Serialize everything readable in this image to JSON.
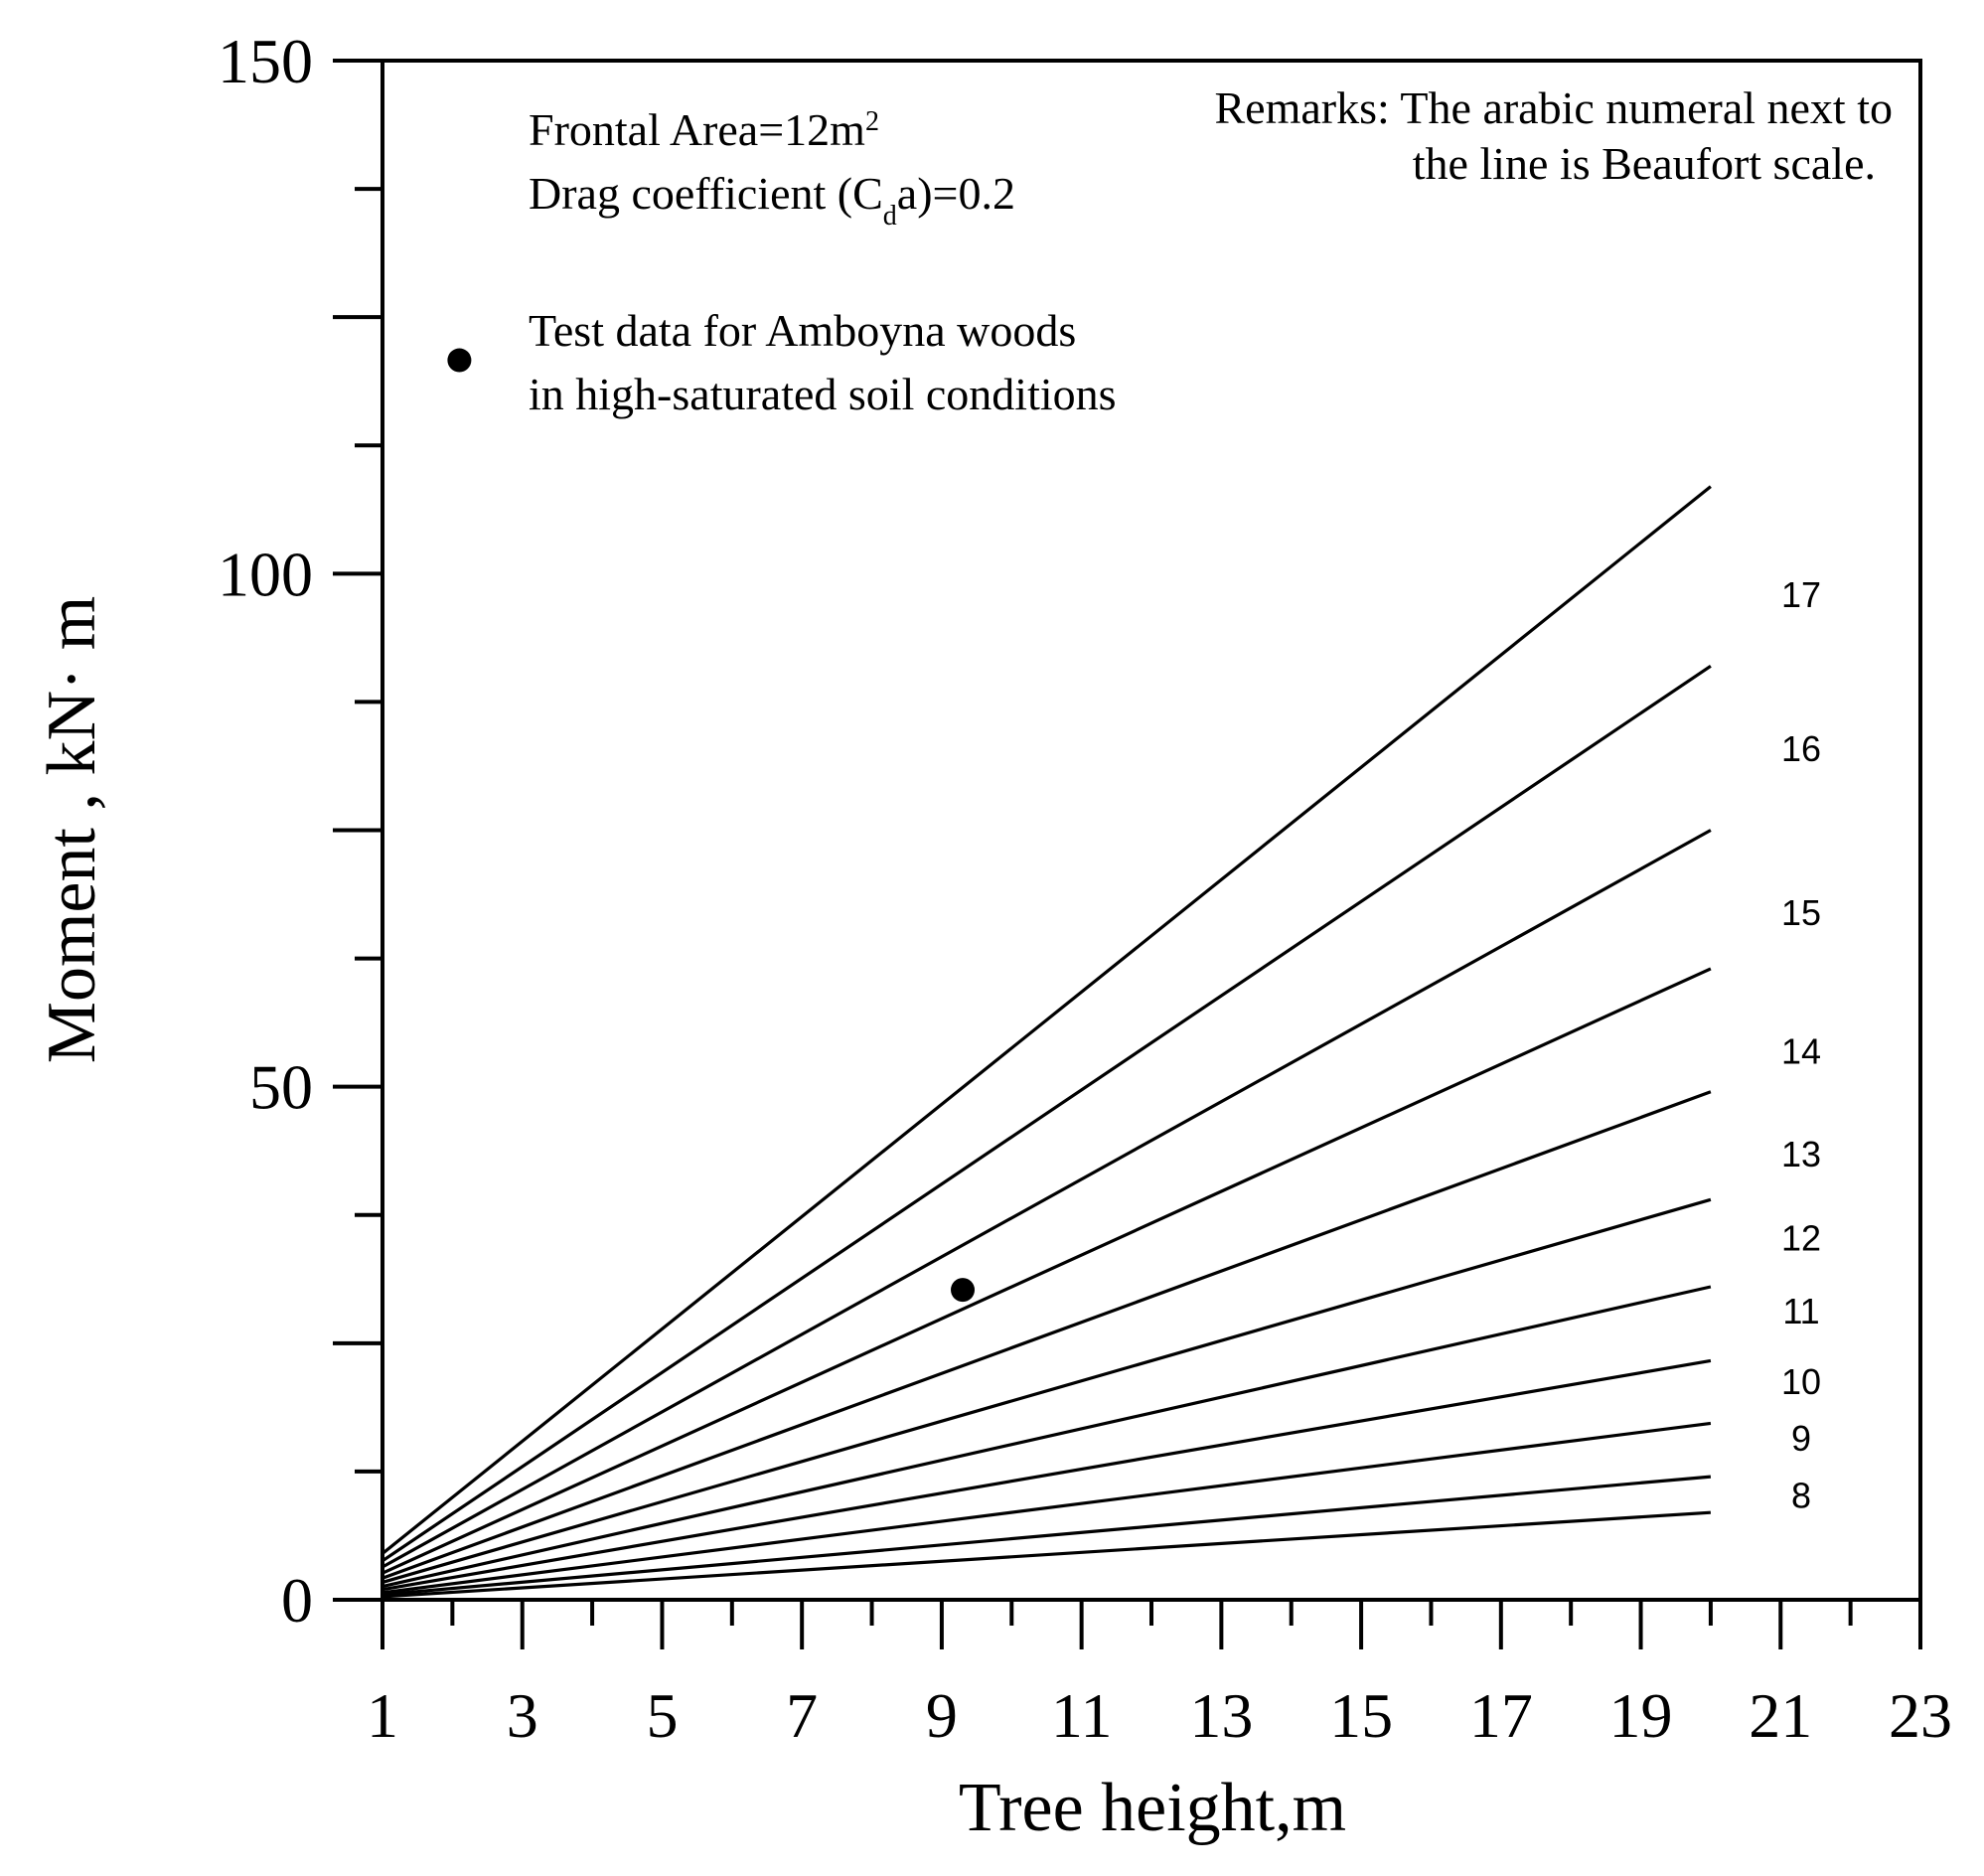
{
  "chart_data": {
    "type": "line",
    "xlabel": "Tree height,m",
    "ylabel": "Moment , kN· m",
    "xlim": [
      1,
      23
    ],
    "ylim": [
      0,
      150
    ],
    "x_ticks": [
      "1",
      "3",
      "5",
      "7",
      "9",
      "11",
      "13",
      "15",
      "17",
      "19",
      "21",
      "23"
    ],
    "y_ticks": [
      "0",
      "50",
      "100",
      "150"
    ],
    "annotations": {
      "frontal_area_prefix": "Frontal Area=12m",
      "frontal_area_sup": "2",
      "drag_prefix": "Drag coefficient (C",
      "drag_sub": "d",
      "drag_suffix": "a)=0.2",
      "remarks_line1": "Remarks: The arabic numeral next to",
      "remarks_line2": "the line is Beaufort scale.",
      "legend_line1": "Test data for Amboyna woods",
      "legend_line2": "in high-saturated soil conditions"
    },
    "series": [
      {
        "name": "17",
        "x": [
          1,
          20
        ],
        "y": [
          4.5,
          108.5
        ]
      },
      {
        "name": "16",
        "x": [
          1,
          20
        ],
        "y": [
          3.8,
          91
        ]
      },
      {
        "name": "15",
        "x": [
          1,
          20
        ],
        "y": [
          3.2,
          75
        ]
      },
      {
        "name": "14",
        "x": [
          1,
          20
        ],
        "y": [
          2.6,
          61.5
        ]
      },
      {
        "name": "13",
        "x": [
          1,
          20
        ],
        "y": [
          2.1,
          49.5
        ]
      },
      {
        "name": "12",
        "x": [
          1,
          20
        ],
        "y": [
          1.7,
          39
        ]
      },
      {
        "name": "11",
        "x": [
          1,
          20
        ],
        "y": [
          1.3,
          30.5
        ]
      },
      {
        "name": "10",
        "x": [
          1,
          20
        ],
        "y": [
          1.0,
          23.3
        ]
      },
      {
        "name": "9",
        "x": [
          1,
          20
        ],
        "y": [
          0.7,
          17.2
        ]
      },
      {
        "name": "8",
        "x": [
          1,
          20
        ],
        "y": [
          0.5,
          12
        ]
      },
      {
        "name": "",
        "x": [
          1,
          20
        ],
        "y": [
          0.3,
          8.5
        ]
      }
    ],
    "series_labels": [
      {
        "text": "17",
        "y": 98
      },
      {
        "text": "16",
        "y": 83
      },
      {
        "text": "15",
        "y": 67
      },
      {
        "text": "14",
        "y": 53.5
      },
      {
        "text": "13",
        "y": 43.5
      },
      {
        "text": "12",
        "y": 35.3
      },
      {
        "text": "11",
        "y": 28.2
      },
      {
        "text": "10",
        "y": 21.3
      },
      {
        "text": "9",
        "y": 15.8
      },
      {
        "text": "8",
        "y": 10.2
      }
    ],
    "test_data": [
      {
        "x": 9.3,
        "y": 30.2
      }
    ],
    "legend_marker": {
      "x": 2.1,
      "y": 120.8
    },
    "grid": false
  }
}
